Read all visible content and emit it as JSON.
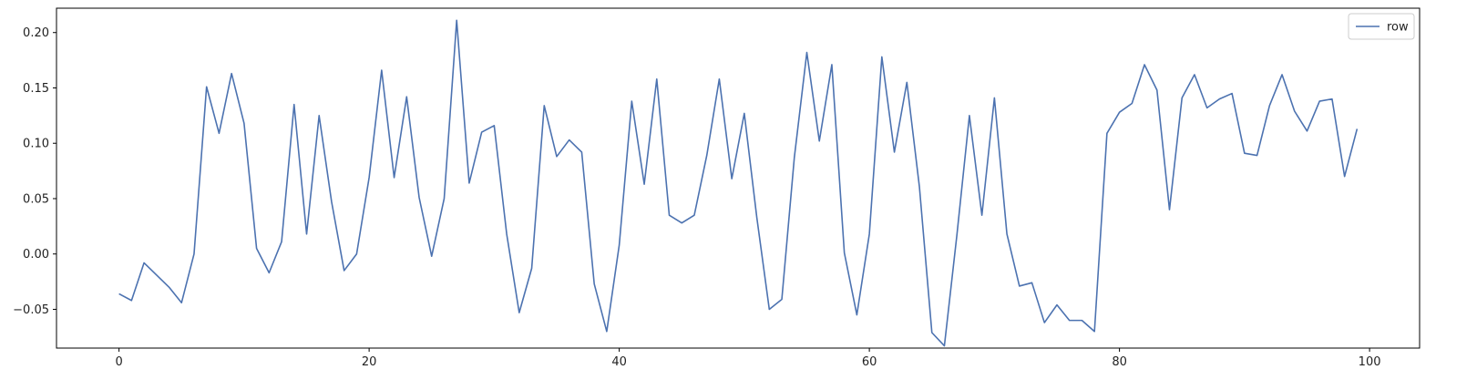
{
  "chart_data": {
    "type": "line",
    "title": "",
    "xlabel": "",
    "ylabel": "",
    "xlim": [
      -5,
      104
    ],
    "ylim": [
      -0.085,
      0.222
    ],
    "xticks": [
      0,
      20,
      40,
      60,
      80,
      100
    ],
    "yticks": [
      -0.05,
      0.0,
      0.05,
      0.1,
      0.15,
      0.2
    ],
    "xtick_labels": [
      "0",
      "20",
      "40",
      "60",
      "80",
      "100"
    ],
    "ytick_labels": [
      "−0.05",
      "0.00",
      "0.05",
      "0.10",
      "0.15",
      "0.20"
    ],
    "grid": false,
    "legend": {
      "position": "top-right",
      "entries": [
        "row"
      ]
    },
    "series": [
      {
        "name": "row",
        "color": "#4c72b0",
        "x": [
          0,
          1,
          2,
          3,
          4,
          5,
          6,
          7,
          8,
          9,
          10,
          11,
          12,
          13,
          14,
          15,
          16,
          17,
          18,
          19,
          20,
          21,
          22,
          23,
          24,
          25,
          26,
          27,
          28,
          29,
          30,
          31,
          32,
          33,
          34,
          35,
          36,
          37,
          38,
          39,
          40,
          41,
          42,
          43,
          44,
          45,
          46,
          47,
          48,
          49,
          50,
          51,
          52,
          53,
          54,
          55,
          56,
          57,
          58,
          59,
          60,
          61,
          62,
          63,
          64,
          65,
          66,
          67,
          68,
          69,
          70,
          71,
          72,
          73,
          74,
          75,
          76,
          77,
          78,
          79,
          80,
          81,
          82,
          83,
          84,
          85,
          86,
          87,
          88,
          89,
          90,
          91,
          92,
          93,
          94,
          95,
          96,
          97,
          98,
          99
        ],
        "values": [
          -0.036,
          -0.042,
          -0.008,
          -0.019,
          -0.03,
          -0.044,
          0.0,
          0.151,
          0.109,
          0.163,
          0.118,
          0.005,
          -0.017,
          0.011,
          0.135,
          0.018,
          0.125,
          0.047,
          -0.015,
          0.0,
          0.069,
          0.166,
          0.069,
          0.142,
          0.051,
          -0.002,
          0.05,
          0.211,
          0.064,
          0.11,
          0.116,
          0.018,
          -0.053,
          -0.013,
          0.134,
          0.088,
          0.103,
          0.092,
          -0.027,
          -0.07,
          0.008,
          0.138,
          0.063,
          0.158,
          0.035,
          0.028,
          0.035,
          0.089,
          0.158,
          0.068,
          0.127,
          0.033,
          -0.05,
          -0.041,
          0.087,
          0.182,
          0.102,
          0.171,
          0.001,
          -0.055,
          0.018,
          0.178,
          0.092,
          0.155,
          0.061,
          -0.071,
          -0.083,
          0.017,
          0.125,
          0.035,
          0.141,
          0.018,
          -0.029,
          -0.026,
          -0.062,
          -0.046,
          -0.06,
          -0.06,
          -0.07,
          0.109,
          0.128,
          0.136,
          0.171,
          0.148,
          0.04,
          0.141,
          0.162,
          0.132,
          0.14,
          0.145,
          0.091,
          0.089,
          0.134,
          0.162,
          0.129,
          0.111,
          0.138,
          0.14,
          0.07,
          0.113
        ]
      }
    ]
  }
}
